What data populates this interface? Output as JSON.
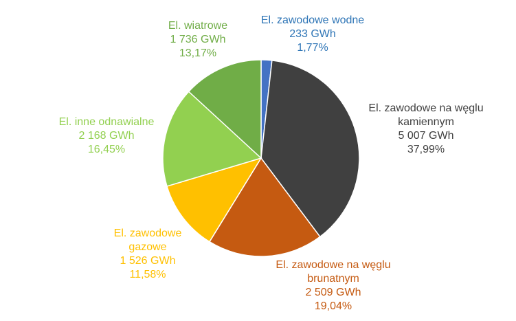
{
  "chart_data": {
    "type": "pie",
    "title": "",
    "start_angle_deg": 0,
    "direction": "clockwise",
    "slices": [
      {
        "key": "hydro",
        "name_lines": [
          "El. zawodowe wodne"
        ],
        "value_label": "233 GWh",
        "percent_label": "1,77%",
        "value": 233,
        "percent": 1.77,
        "color": "#4472C4",
        "label_color": "#2E75B6"
      },
      {
        "key": "hard_coal",
        "name_lines": [
          "El. zawodowe na węglu",
          "kamiennym"
        ],
        "value_label": "5 007 GWh",
        "percent_label": "37,99%",
        "value": 5007,
        "percent": 37.99,
        "color": "#404040",
        "label_color": "#404040"
      },
      {
        "key": "lignite",
        "name_lines": [
          "El. zawodowe na węglu",
          "brunatnym"
        ],
        "value_label": "2 509 GWh",
        "percent_label": "19,04%",
        "value": 2509,
        "percent": 19.04,
        "color": "#C55A11",
        "label_color": "#C55A11"
      },
      {
        "key": "gas",
        "name_lines": [
          "El. zawodowe",
          "gazowe"
        ],
        "value_label": "1 526 GWh",
        "percent_label": "11,58%",
        "value": 1526,
        "percent": 11.58,
        "color": "#FFC000",
        "label_color": "#FFC000"
      },
      {
        "key": "other_renewable",
        "name_lines": [
          "El. inne odnawialne"
        ],
        "value_label": "2 168 GWh",
        "percent_label": "16,45%",
        "value": 2168,
        "percent": 16.45,
        "color": "#92D050",
        "label_color": "#92D050"
      },
      {
        "key": "wind",
        "name_lines": [
          "El. wiatrowe"
        ],
        "value_label": "1 736 GWh",
        "percent_label": "13,17%",
        "value": 1736,
        "percent": 13.17,
        "color": "#70AD47",
        "label_color": "#70AD47"
      }
    ]
  }
}
